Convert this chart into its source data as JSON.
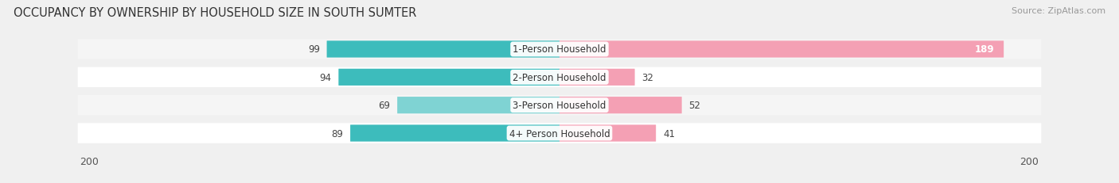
{
  "title": "OCCUPANCY BY OWNERSHIP BY HOUSEHOLD SIZE IN SOUTH SUMTER",
  "source": "Source: ZipAtlas.com",
  "categories": [
    "1-Person Household",
    "2-Person Household",
    "3-Person Household",
    "4+ Person Household"
  ],
  "owner_values": [
    99,
    94,
    69,
    89
  ],
  "renter_values": [
    189,
    32,
    52,
    41
  ],
  "owner_colors": [
    "#3dbcbc",
    "#3dbcbc",
    "#7fd3d3",
    "#3dbcbc"
  ],
  "renter_colors": [
    "#f4a0b4",
    "#f4a0b4",
    "#f4a0b4",
    "#f4a0b4"
  ],
  "row_bg_colors": [
    "#f5f5f5",
    "#ffffff",
    "#f5f5f5",
    "#ffffff"
  ],
  "axis_limit": 200,
  "background_color": "#f0f0f0",
  "title_fontsize": 10.5,
  "source_fontsize": 8,
  "label_fontsize": 8.5,
  "tick_fontsize": 9,
  "legend_fontsize": 9
}
